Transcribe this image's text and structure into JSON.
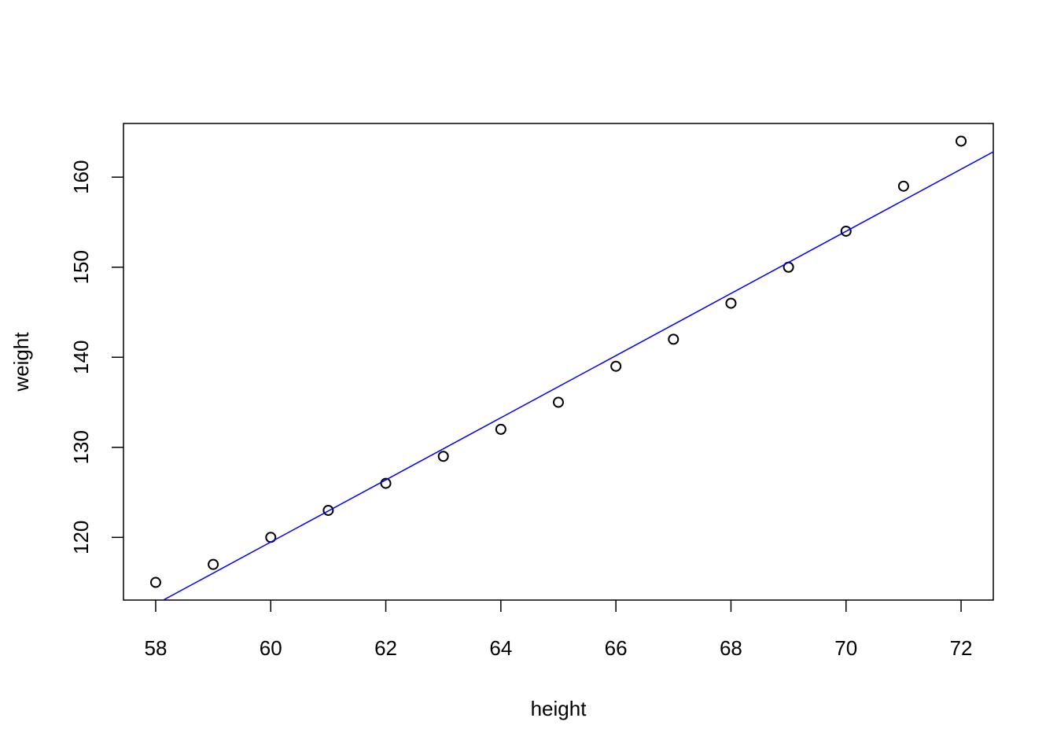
{
  "chart_data": {
    "type": "scatter",
    "x_label": "height",
    "y_label": "weight",
    "x": [
      58,
      59,
      60,
      61,
      62,
      63,
      64,
      65,
      66,
      67,
      68,
      69,
      70,
      71,
      72
    ],
    "values": [
      115,
      117,
      120,
      123,
      126,
      129,
      132,
      135,
      139,
      142,
      146,
      150,
      154,
      159,
      164
    ],
    "color": "#000000",
    "fit": {
      "intercept": -87.51667,
      "slope": 3.45,
      "color": "#0000ff"
    },
    "xlim": [
      57.44,
      72.56
    ],
    "ylim": [
      113.04,
      165.96
    ],
    "xticks": [
      58,
      60,
      62,
      64,
      66,
      68,
      70,
      72
    ],
    "yticks": [
      120,
      130,
      140,
      150,
      160
    ]
  }
}
